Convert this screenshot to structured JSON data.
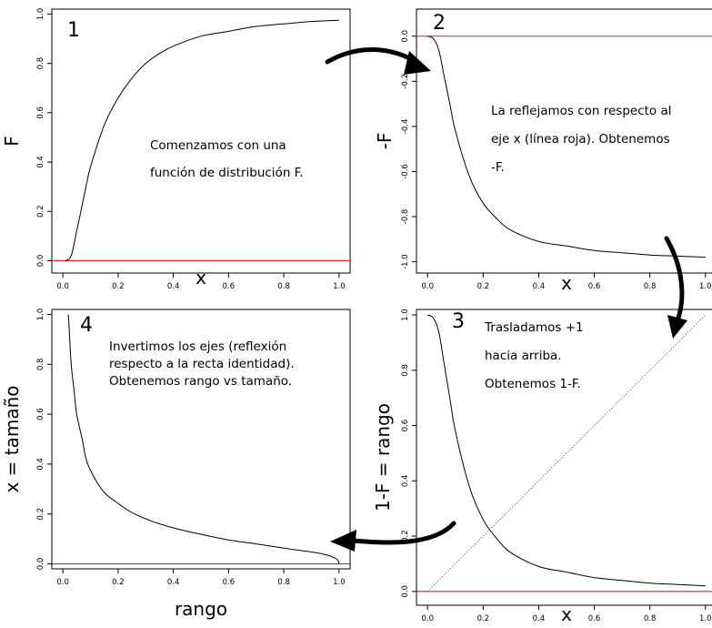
{
  "chart_data": [
    {
      "type": "line",
      "panel": "1",
      "xlabel": "x",
      "ylabel": "F",
      "xlim": [
        -0.04,
        1.04
      ],
      "ylim": [
        -0.05,
        1.02
      ],
      "xticks": [
        "0.0",
        "0.2",
        "0.4",
        "0.6",
        "0.8",
        "1.0"
      ],
      "yticks": [
        "0.0",
        "0.2",
        "0.4",
        "0.6",
        "0.8",
        "1.0"
      ],
      "series": [
        {
          "x": [
            0.01,
            0.03,
            0.05,
            0.08,
            0.1,
            0.15,
            0.2,
            0.25,
            0.3,
            0.35,
            0.4,
            0.5,
            0.6,
            0.7,
            0.8,
            0.9,
            1.0
          ],
          "y": [
            0.0,
            0.02,
            0.12,
            0.28,
            0.38,
            0.55,
            0.66,
            0.74,
            0.8,
            0.84,
            0.87,
            0.91,
            0.93,
            0.95,
            0.96,
            0.97,
            0.975
          ]
        }
      ],
      "hline": 0.0,
      "annotation": [
        "Comenzamos con una",
        "función de distribución F."
      ]
    },
    {
      "type": "line",
      "panel": "2",
      "xlabel": "x",
      "ylabel": "-F",
      "xlim": [
        -0.04,
        1.04
      ],
      "ylim": [
        -1.05,
        0.12
      ],
      "xticks": [
        "0.0",
        "0.2",
        "0.4",
        "0.6",
        "0.8",
        "1.0"
      ],
      "yticks": [
        "0.0",
        "-0.2",
        "-0.4",
        "-0.6",
        "-0.8",
        "-1.0"
      ],
      "series": [
        {
          "x": [
            0.0,
            0.02,
            0.04,
            0.06,
            0.08,
            0.1,
            0.15,
            0.2,
            0.25,
            0.3,
            0.4,
            0.5,
            0.6,
            0.7,
            0.8,
            0.9,
            1.0
          ],
          "y": [
            0.0,
            -0.01,
            -0.06,
            -0.18,
            -0.3,
            -0.42,
            -0.62,
            -0.74,
            -0.81,
            -0.86,
            -0.91,
            -0.93,
            -0.95,
            -0.96,
            -0.97,
            -0.975,
            -0.98
          ]
        }
      ],
      "hline": 0.0,
      "annotation": [
        "La reflejamos con respecto al",
        "eje x (línea roja). Obtenemos",
        "-F."
      ]
    },
    {
      "type": "line",
      "panel": "3",
      "xlabel": "x",
      "ylabel": "1-F = rango",
      "xlim": [
        -0.04,
        1.04
      ],
      "ylim": [
        -0.05,
        1.02
      ],
      "xticks": [
        "0.0",
        "0.2",
        "0.4",
        "0.6",
        "0.8",
        "1.0"
      ],
      "yticks": [
        "0.0",
        "0.2",
        "0.4",
        "0.6",
        "0.8",
        "1.0"
      ],
      "series": [
        {
          "x": [
            0.0,
            0.02,
            0.04,
            0.06,
            0.08,
            0.1,
            0.15,
            0.2,
            0.25,
            0.3,
            0.4,
            0.5,
            0.6,
            0.7,
            0.8,
            0.9,
            1.0
          ],
          "y": [
            1.0,
            0.99,
            0.94,
            0.82,
            0.7,
            0.58,
            0.38,
            0.26,
            0.19,
            0.14,
            0.09,
            0.07,
            0.05,
            0.04,
            0.03,
            0.025,
            0.02
          ]
        },
        {
          "style": "dotted",
          "x": [
            0.0,
            1.0
          ],
          "y": [
            0.0,
            1.0
          ]
        }
      ],
      "hline": 0.0,
      "annotation": [
        "Trasladamos +1",
        "hacia arriba.",
        "Obtenemos 1-F."
      ]
    },
    {
      "type": "line",
      "panel": "4",
      "xlabel": "rango",
      "ylabel": "x = tamaño",
      "xlim": [
        -0.04,
        1.04
      ],
      "ylim": [
        -0.02,
        1.02
      ],
      "xticks": [
        "0.0",
        "0.2",
        "0.4",
        "0.6",
        "0.8",
        "1.0"
      ],
      "yticks": [
        "0.0",
        "0.2",
        "0.4",
        "0.6",
        "0.8",
        "1.0"
      ],
      "series": [
        {
          "x": [
            0.02,
            0.025,
            0.03,
            0.04,
            0.05,
            0.07,
            0.09,
            0.14,
            0.19,
            0.26,
            0.38,
            0.58,
            0.7,
            0.82,
            0.94,
            0.99,
            1.0
          ],
          "y": [
            1.0,
            0.9,
            0.8,
            0.7,
            0.6,
            0.5,
            0.4,
            0.3,
            0.25,
            0.2,
            0.15,
            0.1,
            0.08,
            0.06,
            0.04,
            0.02,
            0.0
          ]
        }
      ],
      "hline": 0.0,
      "annotation": [
        "Invertimos los ejes (reflexión",
        "respecto a la recta identidad).",
        "Obtenemos rango vs tamaño."
      ]
    }
  ]
}
